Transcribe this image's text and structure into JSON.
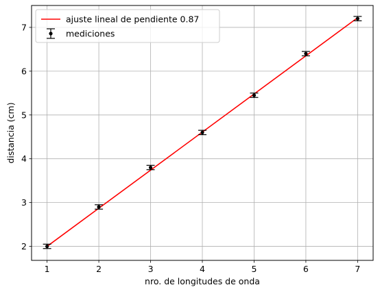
{
  "chart_data": {
    "type": "scatter",
    "xlabel": "nro. de longitudes de onda",
    "ylabel": "distancia (cm)",
    "xlim": [
      0.7,
      7.3
    ],
    "ylim": [
      1.68,
      7.5
    ],
    "grid": true,
    "legend_position": "top-left",
    "x_ticks": [
      1,
      2,
      3,
      4,
      5,
      6,
      7
    ],
    "y_ticks": [
      2,
      3,
      4,
      5,
      6,
      7
    ],
    "series": [
      {
        "name": "mediciones",
        "kind": "errorbar",
        "color": "#000000",
        "x": [
          1,
          2,
          3,
          4,
          5,
          6,
          7
        ],
        "y": [
          2.0,
          2.9,
          3.8,
          4.6,
          5.45,
          6.4,
          7.2
        ],
        "yerr": [
          0.05,
          0.05,
          0.05,
          0.05,
          0.05,
          0.05,
          0.05
        ]
      },
      {
        "name": "ajuste lineal de pendiente 0.87",
        "kind": "line",
        "color": "#ff0000",
        "x": [
          1,
          7
        ],
        "y": [
          2.0,
          7.22
        ]
      }
    ]
  }
}
